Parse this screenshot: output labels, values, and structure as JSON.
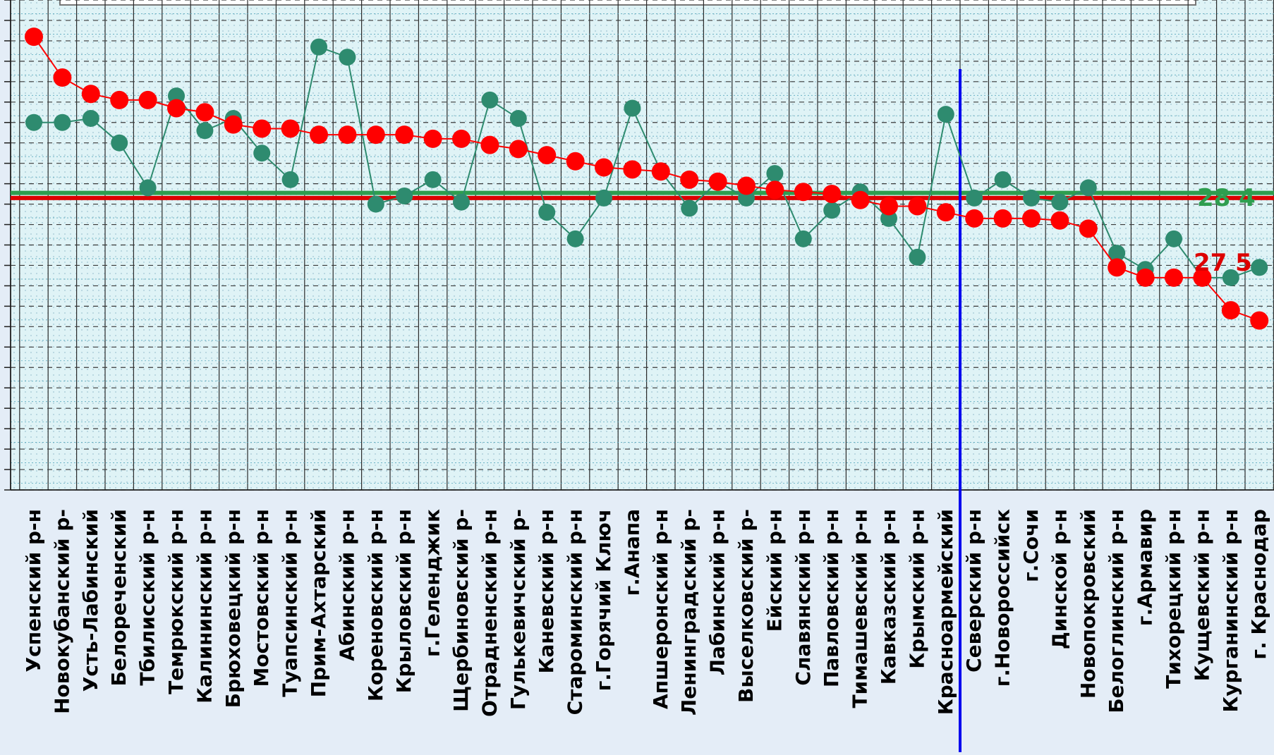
{
  "chart_data": {
    "type": "line",
    "title": "",
    "xlabel": "",
    "ylabel": "",
    "ylim": [
      0,
      24
    ],
    "grid": true,
    "categories": [
      "Успенский р-н",
      "Новокубанский р-",
      "Усть-Лабинский",
      "Белореченский",
      "Тбилисский р-н",
      "Темрюкский р-н",
      "Калининский р-н",
      "Брюховецкий р-н",
      "Мостовский р-н",
      "Туапсинский р-н",
      "Прим-Ахтарский",
      "Абинский р-н",
      "Кореновский р-н",
      "Крыловский р-н",
      "г.Геленджик",
      "Щербиновский р-",
      "Отрадненский р-н",
      "Гулькевичский р-",
      "Каневский р-н",
      "Староминский р-н",
      "г.Горячий Ключ",
      "г.Анапа",
      "Апшеронский р-н",
      "Ленинградский р-",
      "Лабинский р-н",
      "Выселковский р-",
      "Ейский р-н",
      "Славянский р-н",
      "Павловский р-н",
      "Тимашевский р-н",
      "Кавказский р-н",
      "Крымский р-н",
      "Красноармейский",
      "Северский р-н",
      "г.Новороссийск",
      "г.Сочи",
      "Динской р-н",
      "Новопокровский",
      "Белоглинский р-н",
      "г.Армавир",
      "Тихорецкий р-н",
      "Кущевский р-н",
      "Курганинский р-н",
      "г. Краснодар"
    ],
    "series": [
      {
        "color": "#ff0000",
        "values": [
          22.2,
          20.2,
          19.4,
          19.1,
          19.1,
          18.7,
          18.5,
          17.9,
          17.7,
          17.7,
          17.4,
          17.4,
          17.4,
          17.4,
          17.2,
          17.2,
          16.9,
          16.7,
          16.4,
          16.1,
          15.8,
          15.7,
          15.6,
          15.2,
          15.1,
          14.9,
          14.7,
          14.6,
          14.5,
          14.2,
          13.9,
          13.9,
          13.6,
          13.3,
          13.3,
          13.3,
          13.2,
          12.8,
          10.9,
          10.4,
          10.4,
          10.4,
          8.8,
          8.3
        ]
      },
      {
        "color": "#2e8b6f",
        "values": [
          18.0,
          18.0,
          18.2,
          17.0,
          14.8,
          19.3,
          17.6,
          18.2,
          16.5,
          15.2,
          21.7,
          21.2,
          14.0,
          14.4,
          15.2,
          14.1,
          19.1,
          18.2,
          13.6,
          12.3,
          14.3,
          18.7,
          15.6,
          13.8,
          15.1,
          14.3,
          15.5,
          12.3,
          13.7,
          14.6,
          13.3,
          11.4,
          18.4,
          14.3,
          15.2,
          14.3,
          14.1,
          14.8,
          11.6,
          10.8,
          12.3,
          10.4,
          10.4,
          10.9
        ]
      }
    ],
    "reference_lines": [
      {
        "color": "#2e9e4f",
        "value": 14.55
      },
      {
        "color": "#dd0000",
        "value": 14.3
      }
    ],
    "divider_after_category": "Красноармейский",
    "divider_color": "#0000ee",
    "right_margin_labels": [
      {
        "text": "28,4",
        "color": "#2e9e4f",
        "visible_text": "28 4"
      },
      {
        "text": "27,5",
        "color": "#dd0000",
        "visible_text": "27 5"
      }
    ]
  }
}
